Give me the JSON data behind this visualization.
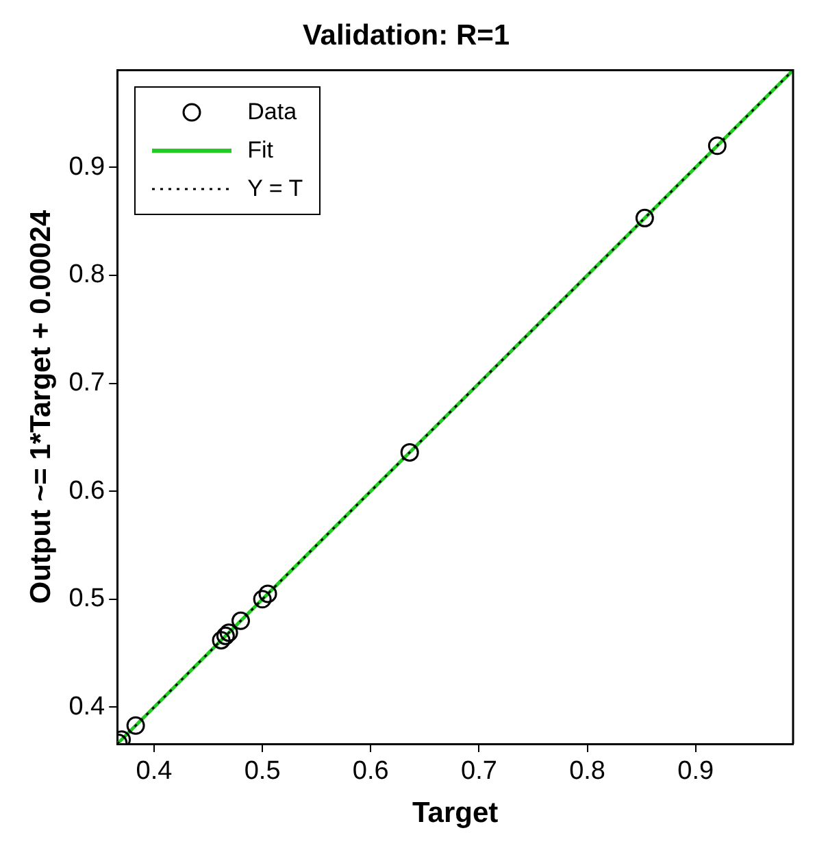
{
  "chart_data": {
    "type": "scatter",
    "title": "Validation: R=1",
    "xlabel": "Target",
    "ylabel": "Output ~= 1*Target + 0.00024",
    "xlim": [
      0.366,
      0.99
    ],
    "ylim": [
      0.366,
      0.99
    ],
    "xticks": [
      0.4,
      0.5,
      0.6,
      0.7,
      0.8,
      0.9
    ],
    "yticks": [
      0.4,
      0.5,
      0.6,
      0.7,
      0.8,
      0.9
    ],
    "grid": false,
    "legend": "top left",
    "series": [
      {
        "name": "Data",
        "marker": "circle",
        "color": "#000000",
        "x": [
          0.367,
          0.37,
          0.383,
          0.462,
          0.466,
          0.469,
          0.48,
          0.5,
          0.505,
          0.636,
          0.853,
          0.92
        ],
        "values": [
          0.367,
          0.37,
          0.383,
          0.462,
          0.466,
          0.469,
          0.48,
          0.5,
          0.505,
          0.636,
          0.853,
          0.92
        ]
      },
      {
        "name": "Fit",
        "type": "line",
        "marker": "none",
        "line_style": "solid",
        "color": "#22cc22",
        "x": [
          0.366,
          0.99
        ],
        "values": [
          0.366,
          0.99
        ]
      },
      {
        "name": "Y = T",
        "type": "line",
        "marker": "none",
        "line_style": "dotted",
        "color": "#000000",
        "x": [
          0.366,
          0.99
        ],
        "values": [
          0.366,
          0.99
        ]
      }
    ]
  }
}
